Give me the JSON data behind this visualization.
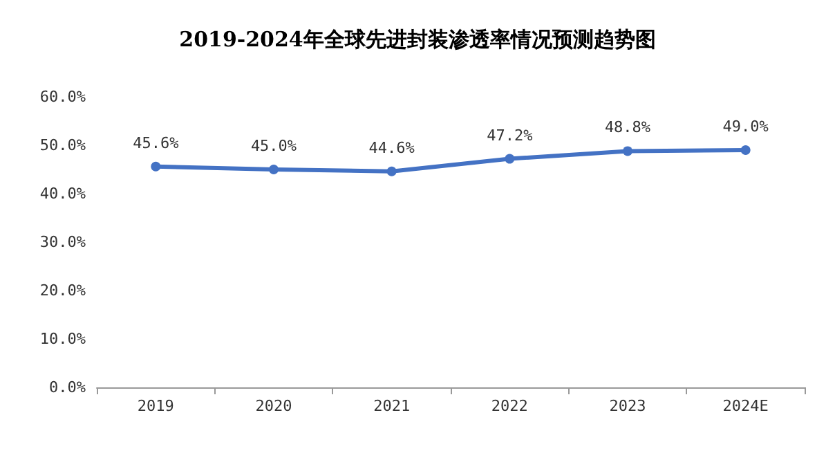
{
  "chart_data": {
    "type": "line",
    "title": "2019-2024年全球先进封装渗透率情况预测趋势图",
    "categories": [
      "2019",
      "2020",
      "2021",
      "2022",
      "2023",
      "2024E"
    ],
    "series": [
      {
        "color": "#4472c4",
        "values": [
          45.6,
          45.0,
          44.6,
          47.2,
          48.8,
          49.0
        ],
        "value_labels": [
          "45.6%",
          "45.0%",
          "44.6%",
          "47.2%",
          "48.8%",
          "49.0%"
        ]
      }
    ],
    "ylim": [
      0,
      60
    ],
    "yticks": [
      {
        "value": 0,
        "label": "0.0%"
      },
      {
        "value": 10,
        "label": "10.0%"
      },
      {
        "value": 20,
        "label": "20.0%"
      },
      {
        "value": 30,
        "label": "30.0%"
      },
      {
        "value": 40,
        "label": "40.0%"
      },
      {
        "value": 50,
        "label": "50.0%"
      },
      {
        "value": 60,
        "label": "60.0%"
      }
    ],
    "grid": false,
    "marker": "circle",
    "line_style": "solid"
  }
}
